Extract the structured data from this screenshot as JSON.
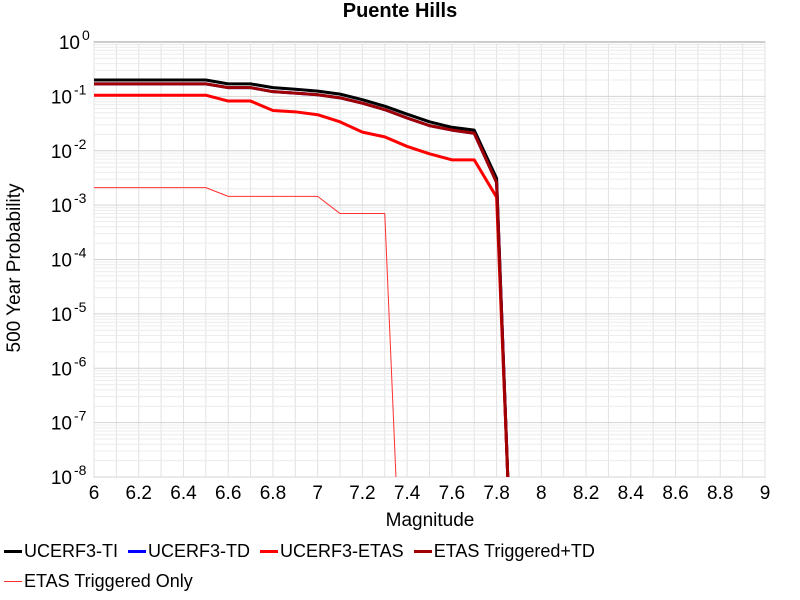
{
  "chart_data": {
    "type": "line",
    "title": "Puente Hills",
    "xlabel": "Magnitude",
    "ylabel": "500 Year Probability",
    "xlim": [
      6,
      9
    ],
    "ylim": [
      1e-08,
      1
    ],
    "yscale": "log",
    "grid": true,
    "legend_position": "bottom",
    "x_ticks": [
      "6",
      "6.2",
      "6.4",
      "6.6",
      "6.8",
      "7",
      "7.2",
      "7.4",
      "7.6",
      "7.8",
      "8",
      "8.2",
      "8.4",
      "8.6",
      "8.8",
      "9"
    ],
    "y_ticks": [
      {
        "base": "10",
        "exp": "0"
      },
      {
        "base": "10",
        "exp": "-1"
      },
      {
        "base": "10",
        "exp": "-2"
      },
      {
        "base": "10",
        "exp": "-3"
      },
      {
        "base": "10",
        "exp": "-4"
      },
      {
        "base": "10",
        "exp": "-5"
      },
      {
        "base": "10",
        "exp": "-6"
      },
      {
        "base": "10",
        "exp": "-7"
      },
      {
        "base": "10",
        "exp": "-8"
      }
    ],
    "series": [
      {
        "name": "UCERF3-TI",
        "color": "#000000",
        "width": 3,
        "x": [
          6.0,
          6.1,
          6.2,
          6.3,
          6.4,
          6.5,
          6.6,
          6.7,
          6.8,
          6.9,
          7.0,
          7.1,
          7.2,
          7.3,
          7.4,
          7.5,
          7.6,
          7.7,
          7.8,
          7.85
        ],
        "y": [
          0.2,
          0.2,
          0.2,
          0.2,
          0.2,
          0.2,
          0.17,
          0.17,
          0.145,
          0.135,
          0.125,
          0.11,
          0.087,
          0.066,
          0.047,
          0.034,
          0.027,
          0.024,
          0.0031,
          1e-08
        ]
      },
      {
        "name": "UCERF3-TD",
        "color": "#0000ff",
        "width": 3,
        "x": [
          6.0,
          6.1,
          6.2,
          6.3,
          6.4,
          6.5,
          6.6,
          6.7,
          6.8,
          6.9,
          7.0,
          7.1,
          7.2,
          7.3,
          7.4,
          7.5,
          7.6,
          7.7,
          7.8,
          7.85
        ],
        "y": [
          0.17,
          0.17,
          0.17,
          0.17,
          0.17,
          0.17,
          0.145,
          0.145,
          0.122,
          0.115,
          0.107,
          0.094,
          0.075,
          0.057,
          0.04,
          0.029,
          0.024,
          0.021,
          0.0026,
          1e-08
        ]
      },
      {
        "name": "UCERF3-ETAS",
        "color": "#ff0000",
        "width": 3,
        "x": [
          6.0,
          6.1,
          6.2,
          6.3,
          6.4,
          6.5,
          6.6,
          6.7,
          6.8,
          6.9,
          7.0,
          7.1,
          7.2,
          7.3,
          7.4,
          7.5,
          7.6,
          7.7,
          7.8,
          7.85
        ],
        "y": [
          0.105,
          0.105,
          0.105,
          0.105,
          0.105,
          0.105,
          0.082,
          0.082,
          0.055,
          0.052,
          0.046,
          0.034,
          0.022,
          0.018,
          0.012,
          0.0088,
          0.0068,
          0.0068,
          0.0014,
          1e-08
        ]
      },
      {
        "name": "ETAS Triggered+TD",
        "color": "#a00000",
        "width": 3,
        "x": [
          6.0,
          6.1,
          6.2,
          6.3,
          6.4,
          6.5,
          6.6,
          6.7,
          6.8,
          6.9,
          7.0,
          7.1,
          7.2,
          7.3,
          7.4,
          7.5,
          7.6,
          7.7,
          7.8,
          7.85
        ],
        "y": [
          0.17,
          0.17,
          0.17,
          0.17,
          0.17,
          0.17,
          0.145,
          0.145,
          0.122,
          0.115,
          0.107,
          0.094,
          0.075,
          0.057,
          0.04,
          0.029,
          0.024,
          0.021,
          0.0026,
          1e-08
        ]
      },
      {
        "name": "ETAS Triggered Only",
        "color": "#ff3030",
        "width": 1,
        "x": [
          6.0,
          6.1,
          6.2,
          6.3,
          6.4,
          6.5,
          6.6,
          6.7,
          6.8,
          6.9,
          7.0,
          7.1,
          7.2,
          7.3,
          7.35
        ],
        "y": [
          0.0021,
          0.0021,
          0.0021,
          0.0021,
          0.0021,
          0.0021,
          0.00145,
          0.00145,
          0.00145,
          0.00145,
          0.00145,
          0.0007,
          0.0007,
          0.0007,
          1e-08
        ]
      }
    ]
  }
}
